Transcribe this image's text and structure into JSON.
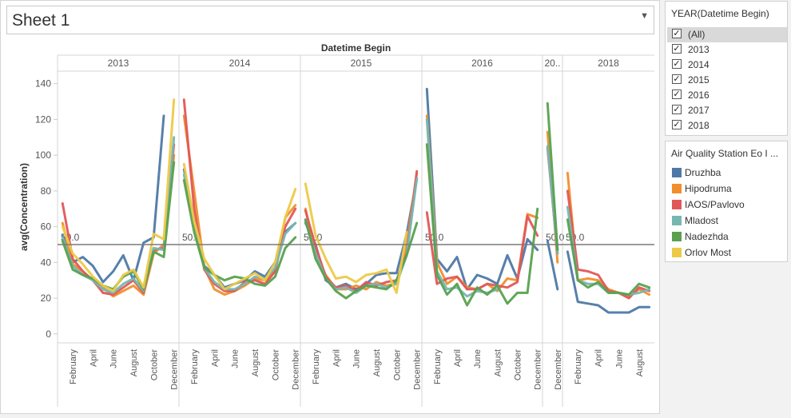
{
  "sheet": {
    "title": "Sheet 1",
    "dropdown_icon": "chevron-down-icon"
  },
  "year_filter": {
    "title": "YEAR(Datetime Begin)",
    "items": [
      {
        "label": "(All)",
        "checked": true
      },
      {
        "label": "2013",
        "checked": true
      },
      {
        "label": "2014",
        "checked": true
      },
      {
        "label": "2015",
        "checked": true
      },
      {
        "label": "2016",
        "checked": true
      },
      {
        "label": "2017",
        "checked": true
      },
      {
        "label": "2018",
        "checked": true
      }
    ]
  },
  "legend": {
    "title": "Air Quality Station Eo I ...",
    "items": [
      {
        "label": "Druzhba",
        "color": "#4e79a7"
      },
      {
        "label": "Hipodruma",
        "color": "#f28e2b"
      },
      {
        "label": "IAOS/Pavlovo",
        "color": "#e15759"
      },
      {
        "label": "Mladost",
        "color": "#76b7b2"
      },
      {
        "label": "Nadezhda",
        "color": "#59a14f"
      },
      {
        "label": "Orlov Most",
        "color": "#edc948"
      }
    ]
  },
  "chart_data": {
    "type": "line",
    "top_title": "Datetime Begin",
    "ylabel": "avg(Concentration)",
    "ylim": [
      -5,
      147
    ],
    "yticks": [
      0,
      20,
      40,
      60,
      80,
      100,
      120,
      140
    ],
    "reference_line": {
      "value": 50,
      "label": "50.0"
    },
    "panes": [
      {
        "year": "2013",
        "months": [
          1,
          2,
          3,
          4,
          5,
          6,
          7,
          8,
          9,
          10,
          11,
          12
        ],
        "tick_labels": [
          "February",
          "April",
          "June",
          "August",
          "October",
          "December"
        ]
      },
      {
        "year": "2014",
        "months": [
          1,
          2,
          3,
          4,
          5,
          6,
          7,
          8,
          9,
          10,
          11,
          12
        ],
        "tick_labels": [
          "February",
          "April",
          "June",
          "August",
          "October",
          "December"
        ]
      },
      {
        "year": "2015",
        "months": [
          1,
          2,
          3,
          4,
          5,
          6,
          7,
          8,
          9,
          10,
          11,
          12
        ],
        "tick_labels": [
          "February",
          "April",
          "June",
          "August",
          "October",
          "December"
        ]
      },
      {
        "year": "2016",
        "months": [
          1,
          2,
          3,
          4,
          5,
          6,
          7,
          8,
          9,
          10,
          11,
          12
        ],
        "tick_labels": [
          "February",
          "April",
          "June",
          "August",
          "October",
          "December"
        ]
      },
      {
        "year": "20..",
        "months": [
          11,
          12
        ],
        "tick_labels": [
          "December"
        ]
      },
      {
        "year": "2018",
        "months": [
          1,
          2,
          3,
          4,
          5,
          6,
          7,
          8,
          9
        ],
        "tick_labels": [
          "February",
          "April",
          "June",
          "August"
        ]
      }
    ],
    "series": [
      {
        "name": "Druzhba",
        "color": "#4e79a7",
        "values": [
          [
            55,
            40,
            43,
            38,
            29,
            35,
            44,
            30,
            51,
            54,
            122,
            null
          ],
          [
            92,
            63,
            38,
            33,
            26,
            28,
            30,
            35,
            32,
            40,
            57,
            62
          ],
          [
            62,
            50,
            30,
            26,
            28,
            25,
            28,
            33,
            34,
            34,
            56,
            87
          ],
          [
            137,
            42,
            35,
            43,
            25,
            33,
            31,
            28,
            44,
            31,
            53,
            47
          ],
          [
            52,
            25
          ],
          [
            46,
            18,
            17,
            16,
            12,
            12,
            12,
            15,
            15
          ]
        ]
      },
      {
        "name": "Hipodruma",
        "color": "#f28e2b",
        "values": [
          [
            62,
            39,
            35,
            30,
            26,
            21,
            24,
            27,
            22,
            45,
            50,
            100
          ],
          [
            122,
            80,
            37,
            25,
            22,
            24,
            27,
            31,
            30,
            35,
            65,
            72
          ],
          [
            70,
            45,
            33,
            25,
            25,
            27,
            25,
            29,
            27,
            28,
            50,
            90
          ],
          [
            122,
            40,
            28,
            32,
            26,
            25,
            28,
            24,
            31,
            30,
            67,
            65
          ],
          [
            113,
            40
          ],
          [
            90,
            30,
            31,
            30,
            25,
            23,
            21,
            25,
            22
          ]
        ]
      },
      {
        "name": "IAOS/Pavlovo",
        "color": "#e15759",
        "values": [
          [
            73,
            42,
            35,
            30,
            23,
            22,
            26,
            30,
            23,
            47,
            48,
            106
          ],
          [
            131,
            70,
            36,
            28,
            24,
            24,
            29,
            30,
            28,
            35,
            60,
            70
          ],
          [
            69,
            49,
            32,
            26,
            27,
            24,
            29,
            27,
            29,
            30,
            45,
            91
          ],
          [
            68,
            28,
            31,
            32,
            25,
            25,
            28,
            27,
            26,
            29,
            66,
            55
          ],
          [
            104,
            45
          ],
          [
            80,
            36,
            35,
            33,
            24,
            23,
            20,
            26,
            24
          ]
        ]
      },
      {
        "name": "Mladost",
        "color": "#76b7b2",
        "values": [
          [
            54,
            38,
            33,
            30,
            25,
            23,
            28,
            31,
            24,
            48,
            47,
            110
          ],
          [
            89,
            62,
            37,
            29,
            25,
            25,
            28,
            32,
            31,
            37,
            56,
            62
          ],
          [
            63,
            45,
            31,
            25,
            26,
            23,
            27,
            28,
            26,
            28,
            44,
            87
          ],
          [
            120,
            35,
            25,
            26,
            21,
            24,
            23,
            25,
            null,
            null,
            null,
            null
          ],
          [
            105,
            45
          ],
          [
            71,
            30,
            28,
            28,
            23,
            23,
            22,
            23,
            25
          ]
        ]
      },
      {
        "name": "Nadezhda",
        "color": "#59a14f",
        "values": [
          [
            52,
            36,
            33,
            31,
            27,
            25,
            32,
            35,
            25,
            46,
            43,
            96
          ],
          [
            86,
            57,
            37,
            33,
            30,
            32,
            31,
            28,
            27,
            32,
            48,
            54
          ],
          [
            64,
            42,
            31,
            24,
            20,
            24,
            27,
            26,
            25,
            30,
            44,
            62
          ],
          [
            106,
            33,
            22,
            28,
            16,
            26,
            22,
            27,
            17,
            23,
            23,
            70
          ],
          [
            129,
            47
          ],
          [
            64,
            30,
            26,
            29,
            23,
            23,
            22,
            28,
            26
          ]
        ]
      },
      {
        "name": "Orlov Most",
        "color": "#edc948",
        "values": [
          [
            60,
            45,
            39,
            32,
            27,
            24,
            33,
            36,
            26,
            56,
            53,
            131
          ],
          [
            95,
            63,
            42,
            33,
            25,
            28,
            31,
            34,
            30,
            40,
            65,
            81
          ],
          [
            84,
            55,
            42,
            31,
            32,
            29,
            33,
            34,
            36,
            23,
            57,
            null
          ],
          [
            null,
            null,
            null,
            null,
            null,
            null,
            null,
            null,
            null,
            null,
            null,
            null
          ],
          [
            null,
            null
          ],
          [
            null,
            null,
            null,
            null,
            null,
            null,
            null,
            null,
            null
          ]
        ]
      }
    ]
  }
}
